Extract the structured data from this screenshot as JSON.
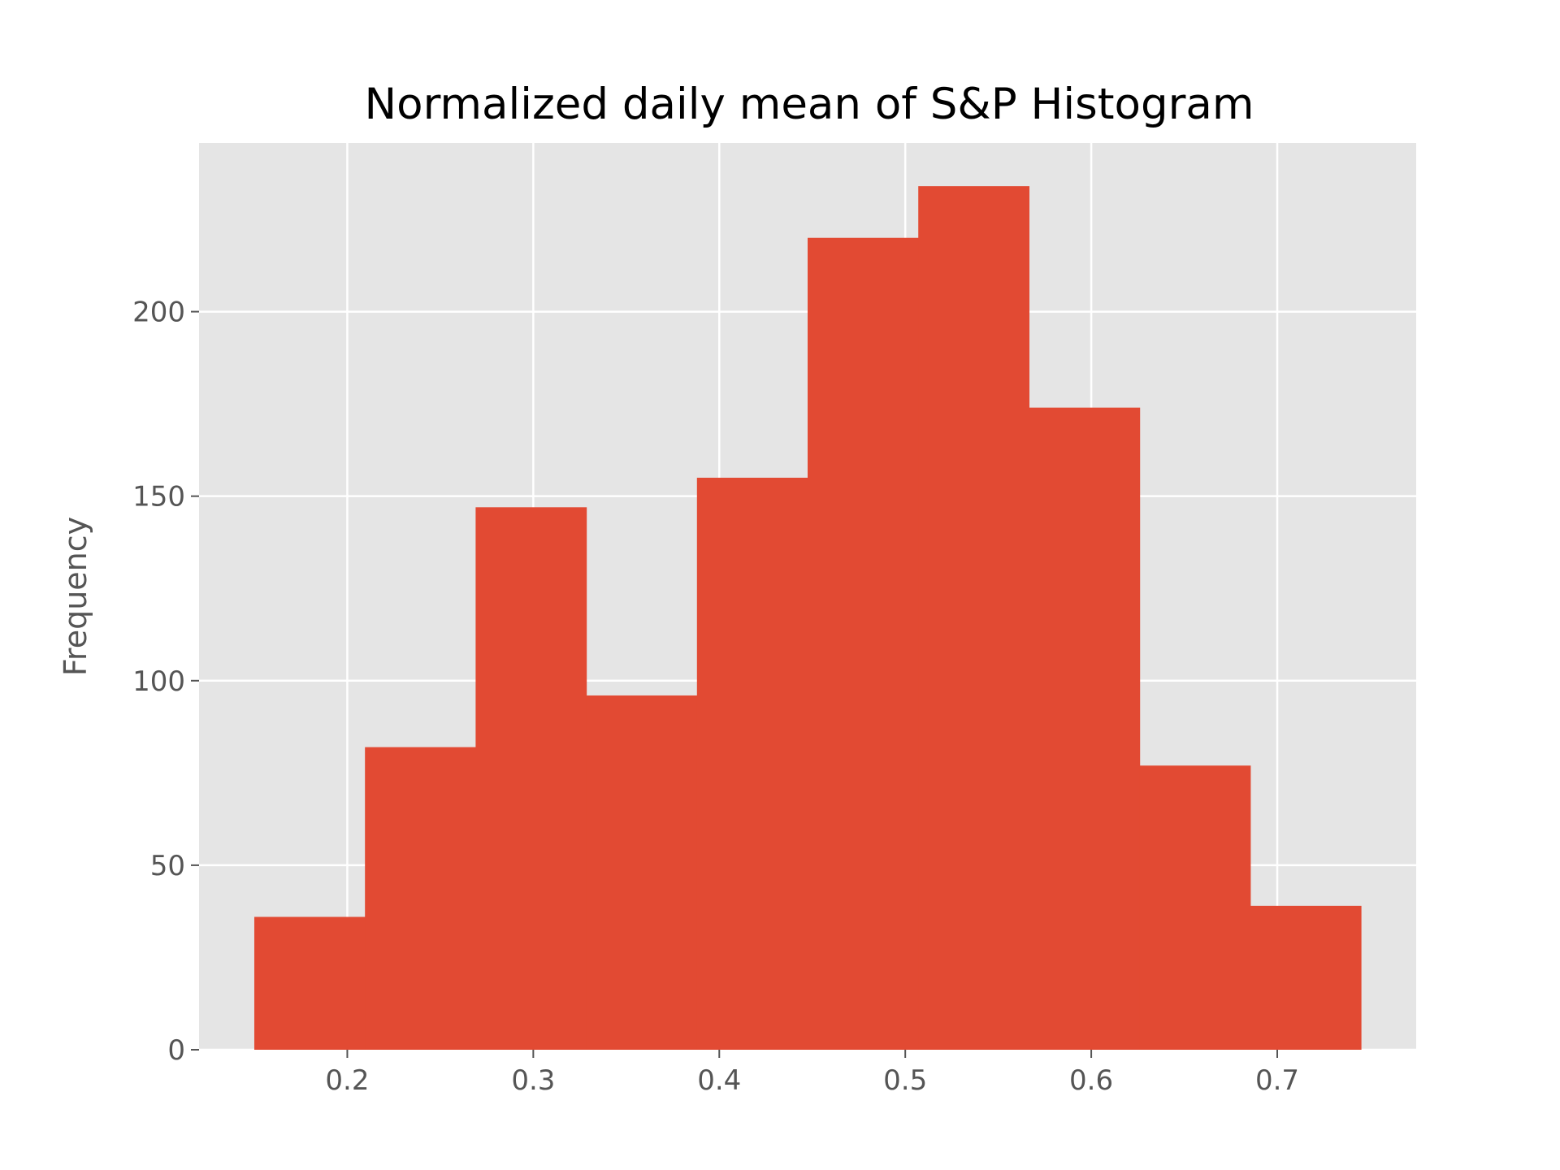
{
  "chart_data": {
    "type": "bar",
    "title": "Normalized daily mean of S&P Histogram",
    "xlabel": "",
    "ylabel": "Frequency",
    "bin_edges": [
      0.15,
      0.2095,
      0.269,
      0.3285,
      0.388,
      0.4475,
      0.507,
      0.5665,
      0.626,
      0.6855,
      0.745
    ],
    "values": [
      36,
      82,
      147,
      96,
      155,
      220,
      234,
      174,
      77,
      39
    ],
    "xlim": [
      0.1203,
      0.7747
    ],
    "ylim": [
      0,
      245.7
    ],
    "x_ticks": [
      0.2,
      0.3,
      0.4,
      0.5,
      0.6,
      0.7
    ],
    "x_tick_labels": [
      "0.2",
      "0.3",
      "0.4",
      "0.5",
      "0.6",
      "0.7"
    ],
    "y_ticks": [
      0,
      50,
      100,
      150,
      200
    ],
    "y_tick_labels": [
      "0",
      "50",
      "100",
      "150",
      "200"
    ],
    "grid": true,
    "legend": "none",
    "colors": {
      "bar": "#e24a33",
      "plot_background": "#e5e5e5",
      "grid": "#ffffff",
      "tick": "#555555"
    }
  }
}
